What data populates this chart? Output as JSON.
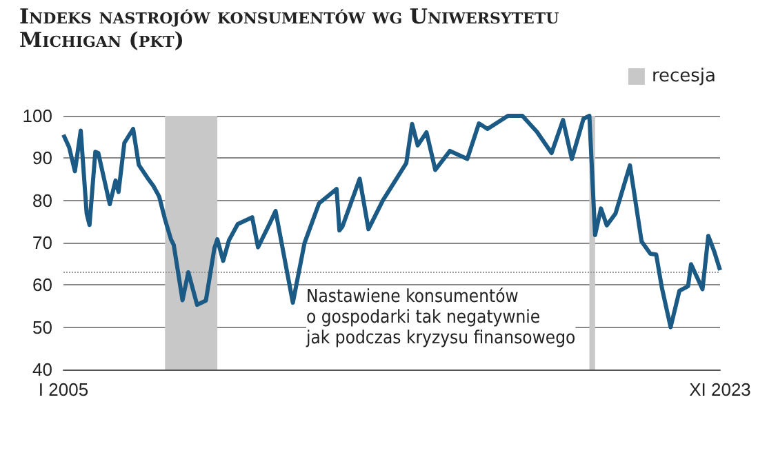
{
  "chart_data": {
    "type": "line",
    "title": "Indeks nastrojów konsumentów wg Uniwersytetu Michigan (pkt)",
    "x": [
      "2005-01",
      "2005-03",
      "2005-05",
      "2005-07",
      "2005-09",
      "2005-10",
      "2005-12",
      "2006-01",
      "2006-05",
      "2006-07",
      "2006-08",
      "2006-10",
      "2007-01",
      "2007-03",
      "2007-06",
      "2007-08",
      "2007-10",
      "2007-12",
      "2008-02",
      "2008-03",
      "2008-06",
      "2008-08",
      "2008-11",
      "2009-02",
      "2009-05",
      "2009-06",
      "2009-08",
      "2009-10",
      "2010-01",
      "2010-06",
      "2010-08",
      "2010-12",
      "2011-02",
      "2011-08",
      "2011-12",
      "2012-05",
      "2012-11",
      "2012-12",
      "2013-01",
      "2013-07",
      "2013-10",
      "2014-03",
      "2014-11",
      "2015-01",
      "2015-03",
      "2015-06",
      "2015-09",
      "2016-02",
      "2016-08",
      "2016-12",
      "2017-03",
      "2017-10",
      "2018-03",
      "2018-08",
      "2019-01",
      "2019-05",
      "2019-08",
      "2019-12",
      "2020-02",
      "2020-04",
      "2020-06",
      "2020-08",
      "2020-11",
      "2021-04",
      "2021-08",
      "2021-11",
      "2022-01",
      "2022-03",
      "2022-06",
      "2022-09",
      "2022-12",
      "2023-01",
      "2023-03",
      "2023-05",
      "2023-07",
      "2023-09",
      "2023-11"
    ],
    "series": [
      {
        "color": "#1a5a85",
        "values": [
          95.5,
          92.6,
          86.9,
          96.5,
          76.9,
          74.2,
          91.5,
          91.2,
          79.1,
          84.7,
          82.0,
          93.6,
          96.9,
          88.4,
          85.3,
          83.4,
          80.9,
          75.5,
          70.8,
          69.5,
          56.4,
          63.0,
          55.3,
          56.3,
          68.7,
          70.8,
          65.7,
          70.6,
          74.4,
          76.0,
          68.9,
          74.5,
          77.5,
          55.8,
          69.9,
          79.3,
          82.7,
          72.9,
          73.8,
          85.1,
          73.2,
          80.0,
          88.8,
          98.1,
          93.0,
          96.1,
          87.2,
          91.7,
          89.8,
          98.2,
          96.9,
          100,
          100,
          96.2,
          91.2,
          99,
          89.8,
          99.3,
          100,
          71.8,
          78.1,
          74.1,
          76.9,
          88.3,
          70.3,
          67.4,
          67.2,
          59.4,
          50.0,
          58.6,
          59.7,
          64.9,
          62.0,
          59.0,
          71.6,
          67.9,
          63.5
        ]
      }
    ],
    "xlim": [
      "2005-01",
      "2023-11"
    ],
    "xticks": [
      {
        "value": "2005-01",
        "label": "I 2005"
      },
      {
        "value": "2023-11",
        "label": "XI 2023"
      }
    ],
    "ylim": [
      40,
      100
    ],
    "yticks": [
      40,
      50,
      60,
      70,
      80,
      90,
      100
    ],
    "grid": "y",
    "legend": "top right",
    "marker": "none",
    "line_style": "solid",
    "ref_lines": [
      {
        "axis": "y",
        "value": 63,
        "color": "#999999",
        "line_style": "dotted"
      }
    ],
    "bands": [
      {
        "axis": "x",
        "from": "2007-12",
        "to": "2009-06",
        "label": "recesja",
        "color": "#c8c8c8"
      },
      {
        "axis": "x",
        "from": "2020-02",
        "to": "2020-04",
        "color": "#c8c8c8"
      }
    ],
    "annotations": [
      "Nastawiene konsumentów\no gospodarki tak negatywnie\njak podczas kryzysu finansowego"
    ]
  }
}
